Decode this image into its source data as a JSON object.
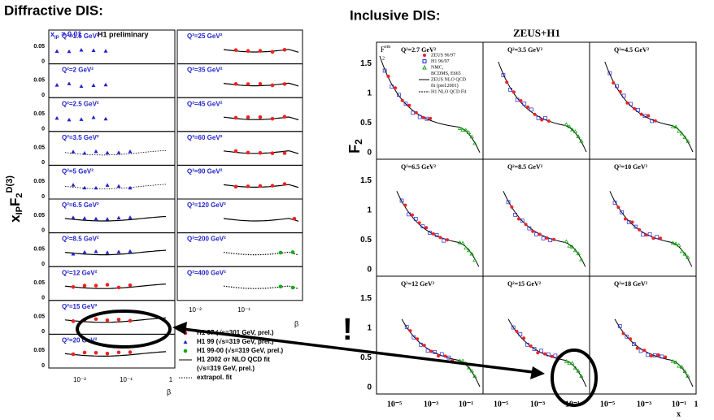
{
  "left": {
    "title": "Diffractive DIS:",
    "header": {
      "x": "x",
      "sub": "IP",
      "rest": " = 0.01",
      "tag": "H1 preliminary"
    },
    "ylabel": {
      "x": "x",
      "sub1": "IP",
      "f": "F",
      "sub2": "2",
      "sup": "D(3)"
    },
    "col1": [
      "Q²=1.5 GeV²",
      "Q²=2 GeV²",
      "Q²=2.5 GeV²",
      "Q²=3.5 GeV²",
      "Q²=5 GeV²",
      "Q²=6.5 GeV²",
      "Q²=8.5 GeV²",
      "Q²=12 GeV²",
      "Q²=15 GeV²",
      "Q²=20 GeV²"
    ],
    "col2": [
      "Q²=25 GeV²",
      "Q²=35 GeV²",
      "Q²=45 GeV²",
      "Q²=60 GeV²",
      "Q²=90 GeV²",
      "Q²=120 GeV²",
      "Q²=200 GeV²",
      "Q²=400 GeV²"
    ],
    "yticks": [
      "0.05",
      "0"
    ],
    "xticks": [
      "10⁻²",
      "10⁻¹",
      "1"
    ],
    "xlabel": "β",
    "legend": [
      "H1 97 (√s=301 GeV, prel.)",
      "H1 99 (√s=319 GeV, prel.)",
      "H1 99-00 (√s=319 GeV, prel.)",
      "H1 2002 σr NLO QCD fit",
      "(√s=319 GeV, prel.)",
      "extrapol. fit"
    ]
  },
  "right": {
    "title": "Inclusive DIS:",
    "subtitle": "ZEUS+H1",
    "ylabel": {
      "f": "F",
      "sub": "2"
    },
    "inner_ylabel": {
      "f": "F",
      "sup": "em",
      "sub": "2"
    },
    "panels": [
      "Q²=2.7 GeV²",
      "Q²=3.5 GeV²",
      "Q²=4.5 GeV²",
      "Q²=6.5 GeV²",
      "Q²=8.5 GeV²",
      "Q²=10 GeV²",
      "Q²=12 GeV²",
      "Q²=15 GeV²",
      "Q²=18 GeV²"
    ],
    "legend": [
      "ZEUS 96/97",
      "H1 96/97",
      "NMC,",
      "BCDMS, E665",
      "ZEUS NLO QCD",
      "fit (prel.2001)",
      "H1 NLO QCD Fit"
    ],
    "yticks": [
      "0",
      "0.5",
      "1",
      "1.5"
    ],
    "xticks": [
      "10⁻⁵",
      "10⁻³",
      "10⁻¹",
      "1"
    ],
    "xlabel": "x"
  },
  "annotation": "!"
}
